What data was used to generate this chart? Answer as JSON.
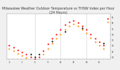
{
  "title": "Milwaukee Weather Outdoor Temperature vs THSW Index per Hour (24 Hours)",
  "title_fontsize": 3.5,
  "background_color": "#f0f0f0",
  "plot_bg_color": "#ffffff",
  "grid_color": "#999999",
  "outdoor_color": "#ff0000",
  "thsw_color": "#ff8800",
  "black_color": "#000000",
  "ylim": [
    18,
    58
  ],
  "ytick_positions": [
    20,
    25,
    30,
    35,
    40,
    45,
    50,
    55
  ],
  "ytick_labels": [
    "20",
    "25",
    "30",
    "35",
    "40",
    "45",
    "50",
    "55"
  ],
  "dot_size": 2.5,
  "temp_vals": [
    30,
    28,
    26,
    24,
    22,
    20,
    18,
    20,
    25,
    31,
    36,
    40,
    44,
    48,
    51,
    52,
    50,
    47,
    44,
    40,
    36,
    33,
    30,
    54
  ],
  "thsw_vals": [
    27,
    25,
    23,
    21,
    19,
    17,
    15,
    17,
    22,
    27,
    32,
    36,
    40,
    44,
    47,
    49,
    47,
    44,
    41,
    37,
    33,
    30,
    27,
    51
  ],
  "black_hours": [
    5,
    6,
    7,
    10,
    13,
    17,
    22
  ],
  "black_vals": [
    22,
    20,
    22,
    34,
    42,
    45,
    32
  ],
  "vgrid_hours": [
    6,
    12,
    18
  ],
  "xlim": [
    -0.5,
    23.5
  ]
}
